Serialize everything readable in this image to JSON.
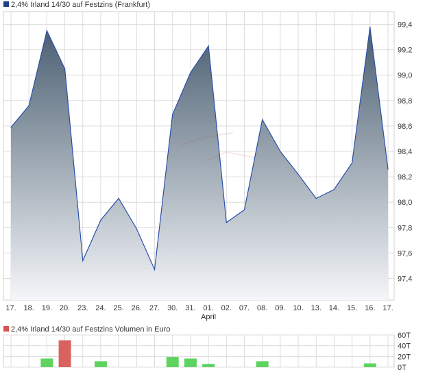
{
  "chart_data": [
    {
      "type": "area",
      "title": "2,4% Irland 14/30 auf Festzins (Frankfurt)",
      "legend_color": "#1f3f8f",
      "line_color": "#2a4fa8",
      "fill_top_color": "#4a5e70",
      "fill_bottom_color": "#f4f6f9",
      "grid": true,
      "y_axis_position": "right",
      "ylim": [
        97.23,
        99.5
      ],
      "yticks": [
        "97,4",
        "97,6",
        "97,8",
        "98,0",
        "98,2",
        "98,4",
        "98,6",
        "98,8",
        "99,0",
        "99,2",
        "99,4"
      ],
      "ytick_values": [
        97.4,
        97.6,
        97.8,
        98.0,
        98.2,
        98.4,
        98.6,
        98.8,
        99.0,
        99.2,
        99.4
      ],
      "x": [
        "17.",
        "18.",
        "19.",
        "20.",
        "23.",
        "24.",
        "25.",
        "26.",
        "27.",
        "30.",
        "31.",
        "01.",
        "02.",
        "07.",
        "08.",
        "09.",
        "10.",
        "13.",
        "14.",
        "15.",
        "16.",
        "17."
      ],
      "x_sublabels": {
        "11": "April"
      },
      "values": [
        98.59,
        98.76,
        99.35,
        99.05,
        97.54,
        97.86,
        98.03,
        97.79,
        97.47,
        98.69,
        99.02,
        99.23,
        97.84,
        97.94,
        98.65,
        98.4,
        98.22,
        98.03,
        98.1,
        98.31,
        99.38,
        98.26
      ]
    },
    {
      "type": "bar",
      "title": "2,4% Irland 14/30 auf Festzins Volumen in Euro",
      "legend_color": "#d9534f",
      "grid": true,
      "y_axis_position": "right",
      "ylim": [
        0,
        60
      ],
      "yticks": [
        "0T",
        "20T",
        "40T",
        "60T"
      ],
      "ytick_values": [
        0,
        20,
        40,
        60
      ],
      "x": [
        "17.",
        "18.",
        "19.",
        "20.",
        "23.",
        "24.",
        "25.",
        "26.",
        "27.",
        "30.",
        "31.",
        "01.",
        "02.",
        "07.",
        "08.",
        "09.",
        "10.",
        "13.",
        "14.",
        "15.",
        "16.",
        "17."
      ],
      "values": [
        0,
        0,
        16,
        50,
        0,
        11,
        0,
        0,
        0,
        19,
        16,
        6,
        0,
        0,
        11,
        0,
        0,
        0,
        0,
        0,
        7,
        0
      ],
      "bar_colors": [
        "#5fd35f",
        "#5fd35f",
        "#5fd35f",
        "#d9625f",
        "#5fd35f",
        "#5fd35f",
        "#5fd35f",
        "#5fd35f",
        "#5fd35f",
        "#5fd35f",
        "#5fd35f",
        "#5fd35f",
        "#5fd35f",
        "#5fd35f",
        "#5fd35f",
        "#5fd35f",
        "#5fd35f",
        "#5fd35f",
        "#5fd35f",
        "#5fd35f",
        "#5fd35f",
        "#5fd35f"
      ]
    }
  ]
}
